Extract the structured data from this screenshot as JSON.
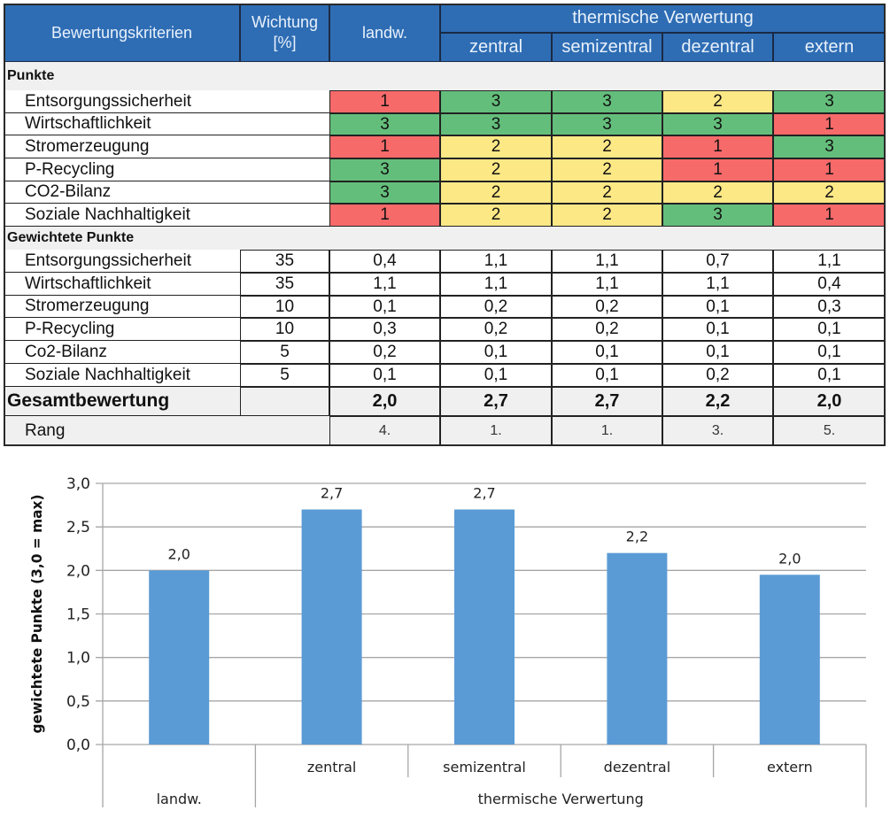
{
  "table": {
    "header": {
      "criteria": "Bewertungskriterien",
      "weight_line1": "Wichtung",
      "weight_line2": "[%]",
      "landw": "landw.",
      "group": "thermische Verwertung",
      "sub": [
        "zentral",
        "semizentral",
        "dezentral",
        "extern"
      ]
    },
    "section_points": "Punkte",
    "points_rows": [
      {
        "label": "Entsorgungssicherheit",
        "values": [
          "1",
          "3",
          "3",
          "2",
          "3"
        ]
      },
      {
        "label": "Wirtschaftlichkeit",
        "values": [
          "3",
          "3",
          "3",
          "3",
          "1"
        ]
      },
      {
        "label": "Stromerzeugung",
        "values": [
          "1",
          "2",
          "2",
          "1",
          "3"
        ]
      },
      {
        "label": "P-Recycling",
        "values": [
          "3",
          "2",
          "2",
          "1",
          "1"
        ]
      },
      {
        "label": "CO2-Bilanz",
        "values": [
          "3",
          "2",
          "2",
          "2",
          "2"
        ]
      },
      {
        "label": "Soziale Nachhaltigkeit",
        "values": [
          "1",
          "2",
          "2",
          "3",
          "1"
        ]
      }
    ],
    "section_weighted": "Gewichtete Punkte",
    "weighted_rows": [
      {
        "label": "Entsorgungssicherheit",
        "weight": "35",
        "values": [
          "0,4",
          "1,1",
          "1,1",
          "0,7",
          "1,1"
        ]
      },
      {
        "label": "Wirtschaftlichkeit",
        "weight": "35",
        "values": [
          "1,1",
          "1,1",
          "1,1",
          "1,1",
          "0,4"
        ]
      },
      {
        "label": "Stromerzeugung",
        "weight": "10",
        "values": [
          "0,1",
          "0,2",
          "0,2",
          "0,1",
          "0,3"
        ]
      },
      {
        "label": "P-Recycling",
        "weight": "10",
        "values": [
          "0,3",
          "0,2",
          "0,2",
          "0,1",
          "0,1"
        ]
      },
      {
        "label": "Co2-Bilanz",
        "weight": "5",
        "values": [
          "0,2",
          "0,1",
          "0,1",
          "0,1",
          "0,1"
        ]
      },
      {
        "label": "Soziale Nachhaltigkeit",
        "weight": "5",
        "values": [
          "0,1",
          "0,1",
          "0,1",
          "0,2",
          "0,1"
        ]
      }
    ],
    "total": {
      "label": "Gesamtbewertung",
      "values": [
        "2,0",
        "2,7",
        "2,7",
        "2,2",
        "2,0"
      ]
    },
    "rank": {
      "label": "Rang",
      "values": [
        "4.",
        "1.",
        "1.",
        "3.",
        "5."
      ]
    },
    "colors": {
      "score_3": "#64be7b",
      "score_2": "#fde886",
      "score_1": "#f76a6a",
      "header": "#2e6db4"
    }
  },
  "chart_data": {
    "type": "bar",
    "title": "",
    "xlabel": "",
    "ylabel": "gewichtete Punkte (3,0 = max)",
    "ylim": [
      0,
      3
    ],
    "yticks": [
      0,
      0.5,
      1.0,
      1.5,
      2.0,
      2.5,
      3.0
    ],
    "ytick_labels": [
      "0,0",
      "0,5",
      "1,0",
      "1,5",
      "2,0",
      "2,5",
      "3,0"
    ],
    "grid": true,
    "legend": "none",
    "categories": [
      "landw.",
      "zentral",
      "semizentral",
      "dezentral",
      "extern"
    ],
    "category_groups": [
      {
        "label": "landw.",
        "members": [
          "landw."
        ]
      },
      {
        "label": "thermische Verwertung",
        "members": [
          "zentral",
          "semizentral",
          "dezentral",
          "extern"
        ]
      }
    ],
    "values": [
      2.0,
      2.7,
      2.7,
      2.2,
      1.95
    ],
    "data_labels": [
      "2,0",
      "2,7",
      "2,7",
      "2,2",
      "2,0"
    ],
    "bar_color": "#5b9bd5"
  }
}
